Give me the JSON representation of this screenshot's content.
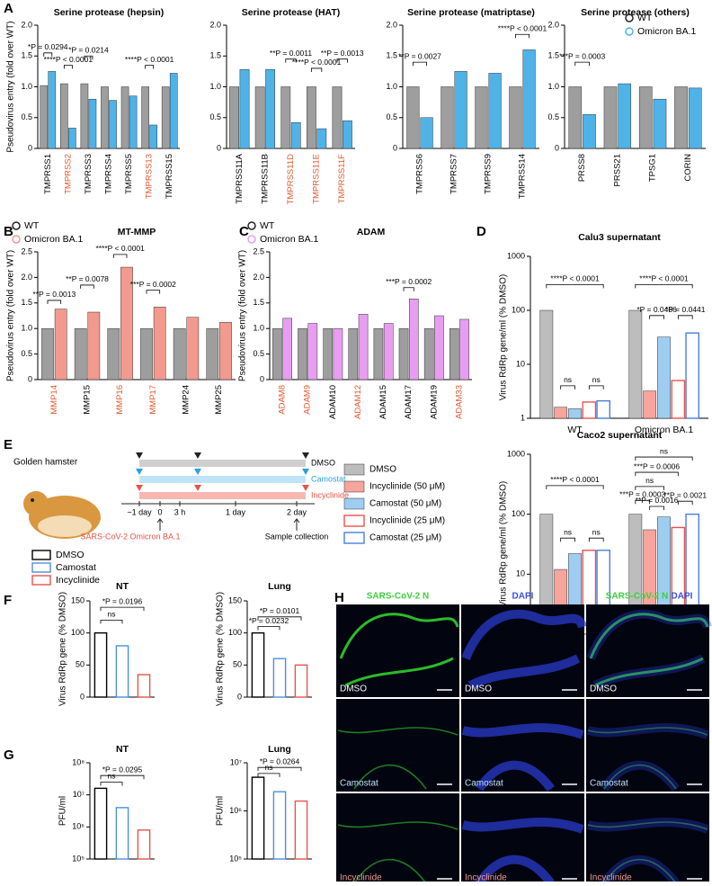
{
  "panel_labels": [
    "A",
    "B",
    "C",
    "D",
    "E",
    "F",
    "G",
    "H"
  ],
  "chart_data": [
    {
      "type": "bar",
      "title": "Serine protease (hepsin)",
      "ylabel": "Pseudovirus entry (fold over WT)",
      "categories": [
        "TMPRSS1",
        "TMPRSS2",
        "TMPRSS3",
        "TMPRSS4",
        "TMPRSS5",
        "TMPRSS13",
        "TMPRSS15"
      ],
      "label_colors": [
        "#000000",
        "#e2592f",
        "#000000",
        "#000000",
        "#000000",
        "#e2592f",
        "#000000"
      ],
      "series": [
        {
          "name": "WT",
          "color": "#9e9e9e",
          "values": [
            1.02,
            1.05,
            1.05,
            1.0,
            1.0,
            1.0,
            1.0
          ]
        },
        {
          "name": "Omicron BA.1",
          "color": "#4fb3e8",
          "values": [
            1.25,
            0.33,
            0.8,
            0.78,
            0.85,
            0.38,
            1.22
          ]
        }
      ],
      "ylim": [
        0,
        2
      ],
      "yticks": [
        0,
        0.5,
        {
          "value": 1,
          "label": "1.0"
        },
        1.5,
        {
          "value": 2,
          "label": "2.0"
        }
      ],
      "annotations": [
        "*P = 0.0294",
        "****P < 0.0001",
        "*P = 0.0214",
        "****P < 0.0001"
      ]
    },
    {
      "type": "bar",
      "title": "Serine protease (HAT)",
      "categories": [
        "TMPRSS11A",
        "TMPRSS11B",
        "TMPRSS11D",
        "TMPRSS11E",
        "TMPRSS11F"
      ],
      "label_colors": [
        "#000000",
        "#000000",
        "#e2592f",
        "#e2592f",
        "#e2592f"
      ],
      "series": [
        {
          "name": "WT",
          "color": "#9e9e9e",
          "values": [
            1.0,
            1.0,
            1.0,
            1.0,
            1.0
          ]
        },
        {
          "name": "Omicron BA.1",
          "color": "#4fb3e8",
          "values": [
            1.28,
            1.28,
            0.42,
            0.32,
            0.45
          ]
        }
      ],
      "ylim": [
        0,
        2
      ],
      "yticks": [
        0,
        0.5,
        {
          "value": 1,
          "label": "1.0"
        },
        1.5,
        {
          "value": 2,
          "label": "2.0"
        }
      ],
      "annotations": [
        "**P = 0.0011",
        "****P < 0.0001",
        "**P = 0.0013"
      ]
    },
    {
      "type": "bar",
      "title": "Serine protease (matriptase)",
      "categories": [
        "TMPRSS6",
        "TMPRSS7",
        "TMPRSS9",
        "TMPRSS14"
      ],
      "label_colors": [
        "#000000",
        "#000000",
        "#000000",
        "#000000"
      ],
      "series": [
        {
          "name": "WT",
          "color": "#9e9e9e",
          "values": [
            1.0,
            1.0,
            1.0,
            1.0
          ]
        },
        {
          "name": "Omicron BA.1",
          "color": "#4fb3e8",
          "values": [
            0.5,
            1.25,
            1.22,
            1.6
          ]
        }
      ],
      "ylim": [
        0,
        2
      ],
      "yticks": [
        0,
        0.5,
        {
          "value": 1,
          "label": "1.0"
        },
        1.5,
        {
          "value": 2,
          "label": "2.0"
        }
      ],
      "annotations": [
        "**P = 0.0027",
        "****P < 0.0001"
      ]
    },
    {
      "type": "bar",
      "title": "Serine protease (others)",
      "categories": [
        "PRSS8",
        "PRSS21",
        "TPSG1",
        "CORIN"
      ],
      "label_colors": [
        "#000000",
        "#000000",
        "#000000",
        "#000000"
      ],
      "series": [
        {
          "name": "WT",
          "color": "#9e9e9e",
          "values": [
            1.0,
            1.0,
            1.0,
            1.0
          ]
        },
        {
          "name": "Omicron BA.1",
          "color": "#4fb3e8",
          "values": [
            0.55,
            1.05,
            0.8,
            0.98
          ]
        }
      ],
      "ylim": [
        0,
        2
      ],
      "yticks": [
        0,
        0.5,
        {
          "value": 1,
          "label": "1.0"
        },
        1.5,
        {
          "value": 2,
          "label": "2.0"
        }
      ],
      "annotations": [
        "***P = 0.0003"
      ]
    },
    {
      "type": "bar",
      "title": "MT-MMP",
      "ylabel": "Pseudovirus entry (fold over WT)",
      "categories": [
        "MMP14",
        "MMP15",
        "MMP16",
        "MMP17",
        "MMP24",
        "MMP25"
      ],
      "label_colors": [
        "#e2592f",
        "#000000",
        "#e2592f",
        "#e2592f",
        "#000000",
        "#000000"
      ],
      "series": [
        {
          "name": "WT",
          "color": "#9e9e9e",
          "values": [
            1.0,
            1.0,
            1.0,
            1.0,
            1.0,
            1.0
          ]
        },
        {
          "name": "Omicron BA.1",
          "color": "#f29a8e",
          "values": [
            1.38,
            1.32,
            2.2,
            1.42,
            1.22,
            1.12
          ]
        }
      ],
      "ylim": [
        0,
        2.5
      ],
      "yticks": [
        0,
        0.5,
        {
          "value": 1,
          "label": "1.0"
        },
        1.5,
        {
          "value": 2,
          "label": "2.0"
        },
        2.5
      ],
      "annotations": [
        "**P = 0.0013",
        "**P = 0.0078",
        "****P < 0.0001",
        "***P = 0.0002"
      ]
    },
    {
      "type": "bar",
      "title": "ADAM",
      "ylabel": "Pseudovirus entry (fold over WT)",
      "categories": [
        "ADAM8",
        "ADAM9",
        "ADAM10",
        "ADAM12",
        "ADAM15",
        "ADAM17",
        "ADAM19",
        "ADAM33"
      ],
      "label_colors": [
        "#e2592f",
        "#e2592f",
        "#000000",
        "#e2592f",
        "#000000",
        "#000000",
        "#000000",
        "#e2592f"
      ],
      "series": [
        {
          "name": "WT",
          "color": "#9e9e9e",
          "values": [
            1.0,
            1.0,
            1.0,
            1.0,
            1.0,
            1.0,
            1.0,
            1.0
          ]
        },
        {
          "name": "Omicron BA.1",
          "color": "#e89ef0",
          "values": [
            1.2,
            1.1,
            1.0,
            1.28,
            1.1,
            1.58,
            1.25,
            1.18
          ]
        }
      ],
      "ylim": [
        0,
        2.5
      ],
      "yticks": [
        0,
        0.5,
        {
          "value": 1,
          "label": "1.0"
        },
        1.5,
        {
          "value": 2,
          "label": "2.0"
        },
        2.5
      ],
      "annotations": [
        "***P = 0.0002"
      ]
    },
    {
      "type": "bar",
      "title": "Calu3 supernatant",
      "ylabel": "Virus RdRp gene/ml (% DMSO)",
      "log": true,
      "categories": [
        "WT",
        "Omicron BA.1"
      ],
      "series": [
        {
          "name": "DMSO",
          "color": "#bdbdbd",
          "values": [
            100,
            100
          ]
        },
        {
          "name": "Incyclinide (50 μM)",
          "color": "#f7a49c",
          "values": [
            1.6,
            3.2
          ]
        },
        {
          "name": "Camostat (50 μM)",
          "color": "#9fcdf2",
          "values": [
            1.5,
            32
          ]
        },
        {
          "name": "Incyclinide (25 μM)",
          "color": "#e8534a",
          "hollow": true,
          "values": [
            2.0,
            5
          ]
        },
        {
          "name": "Camostat (25 μM)",
          "color": "#4a7de2",
          "hollow": true,
          "values": [
            2.1,
            38
          ]
        }
      ],
      "ylim": [
        1,
        1000
      ],
      "yticks": [
        1,
        10,
        100,
        1000
      ],
      "annotations": [
        "****P < 0.0001",
        "ns",
        "ns",
        "****P < 0.0001",
        "*P = 0.0466",
        "*P = 0.0441"
      ]
    },
    {
      "type": "bar",
      "title": "Caco2 supernatant",
      "ylabel": "Virus RdRp gene/ml (% DMSO)",
      "log": true,
      "categories": [
        "WT",
        "Omicron BA.1"
      ],
      "series": [
        {
          "name": "DMSO",
          "color": "#bdbdbd",
          "values": [
            100,
            100
          ]
        },
        {
          "name": "Incyclinide (50 μM)",
          "color": "#f7a49c",
          "values": [
            12,
            55
          ]
        },
        {
          "name": "Camostat (50 μM)",
          "color": "#9fcdf2",
          "values": [
            22,
            90
          ]
        },
        {
          "name": "Incyclinide (25 μM)",
          "color": "#e8534a",
          "hollow": true,
          "values": [
            25,
            60
          ]
        },
        {
          "name": "Camostat (25 μM)",
          "color": "#4a7de2",
          "hollow": true,
          "values": [
            25,
            100
          ]
        }
      ],
      "ylim": [
        1,
        1000
      ],
      "yticks": [
        1,
        10,
        100,
        1000
      ],
      "annotations": [
        "****P < 0.0001",
        "ns",
        "ns",
        "ns",
        "***P = 0.0006",
        "ns",
        "***P = 0.0003",
        "**P = 0.0016",
        "**P = 0.0021"
      ]
    },
    {
      "type": "bar",
      "title": "NT",
      "ylabel": "Virus RdRp gene (% DMSO)",
      "categories": [
        "DMSO",
        "Camostat",
        "Incyclinide"
      ],
      "values": [
        100,
        80,
        35
      ],
      "colors": [
        "#000000",
        "#4a90e2",
        "#e8534a"
      ],
      "hollow": true,
      "ylim": [
        0,
        150
      ],
      "yticks": [
        0,
        50,
        100,
        150
      ],
      "annotations": [
        "*P = 0.0196",
        "ns"
      ]
    },
    {
      "type": "bar",
      "title": "Lung",
      "ylabel": "Virus RdRp gene (% DMSO)",
      "values": [
        100,
        60,
        50
      ],
      "colors": [
        "#000000",
        "#4a90e2",
        "#e8534a"
      ],
      "hollow": true,
      "ylim": [
        0,
        150
      ],
      "yticks": [
        0,
        50,
        100,
        150
      ],
      "annotations": [
        "*P = 0.0101",
        "*P = 0.0232"
      ]
    },
    {
      "type": "bar",
      "title": "NT",
      "ylabel": "PFU/ml",
      "log": true,
      "values": [
        16000000,
        4000000,
        800000
      ],
      "colors": [
        "#000000",
        "#4a90e2",
        "#e8534a"
      ],
      "hollow": true,
      "ylim": [
        100000,
        100000000
      ],
      "yticks": [
        {
          "value": 100000,
          "label": "10⁵"
        },
        {
          "value": 1000000,
          "label": "10⁶"
        },
        {
          "value": 10000000,
          "label": "10⁷"
        },
        {
          "value": 100000000,
          "label": "10⁸"
        }
      ],
      "annotations": [
        "*P = 0.0295",
        "ns"
      ]
    },
    {
      "type": "bar",
      "title": "Lung",
      "ylabel": "PFU/ml",
      "log": true,
      "values": [
        5000000,
        2500000,
        1600000
      ],
      "colors": [
        "#000000",
        "#4a90e2",
        "#e8534a"
      ],
      "hollow": true,
      "ylim": [
        100000,
        10000000
      ],
      "yticks": [
        {
          "value": 100000,
          "label": "10⁵"
        },
        {
          "value": 1000000,
          "label": "10⁶"
        },
        {
          "value": 10000000,
          "label": "10⁷"
        }
      ],
      "annotations": [
        "*P = 0.0264",
        "ns"
      ]
    }
  ],
  "schedule": {
    "animal": "Golden hamster",
    "treatments": [
      "DMSO",
      "Camostat",
      "Incyclinide"
    ],
    "times": [
      "−1 day",
      "0",
      "3 h",
      "1 day",
      "2 day"
    ],
    "infection": "SARS-CoV-2 Omicron BA.1",
    "sampling": "Sample collection"
  },
  "images": {
    "columns": [
      "SARS-CoV-2 N",
      "DAPI"
    ],
    "rows": [
      "DMSO",
      "Camostat",
      "Incyclinide"
    ]
  }
}
